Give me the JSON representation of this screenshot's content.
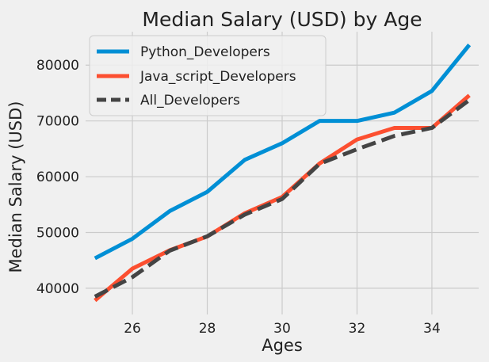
{
  "chart_data": {
    "type": "line",
    "title": "Median Salary (USD) by Age",
    "xlabel": "Ages",
    "ylabel": "Median Salary (USD)",
    "x": [
      25,
      26,
      27,
      28,
      29,
      30,
      31,
      32,
      33,
      34,
      35
    ],
    "xlim": [
      24.75,
      35.25
    ],
    "ylim": [
      35300,
      86000
    ],
    "x_ticks": [
      26,
      28,
      30,
      32,
      34
    ],
    "y_ticks": [
      40000,
      50000,
      60000,
      70000,
      80000
    ],
    "grid": true,
    "legend_position": "top-left",
    "series": [
      {
        "name": "Python_Developers",
        "color": "#008fd5",
        "dash": "solid",
        "values": [
          45372,
          48876,
          53850,
          57287,
          63016,
          65998,
          70003,
          70000,
          71496,
          75370,
          83640
        ]
      },
      {
        "name": "Java_script_Developers",
        "color": "#fc4f30",
        "dash": "solid",
        "values": [
          37810,
          43515,
          46823,
          49293,
          53437,
          56373,
          62375,
          66674,
          68745,
          68746,
          74583
        ]
      },
      {
        "name": "All_Developers",
        "color": "#444444",
        "dash": "dashed",
        "values": [
          38496,
          42000,
          46752,
          49320,
          53200,
          56000,
          62316,
          64928,
          67317,
          68748,
          73752
        ]
      }
    ]
  }
}
